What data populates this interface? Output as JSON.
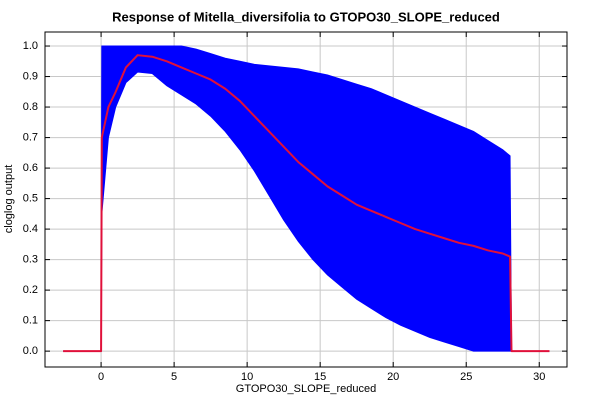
{
  "chart_data": {
    "type": "line",
    "title": "Response of Mitella_diversifolia to GTOPO30_SLOPE_reduced",
    "x_label": "GTOPO30_SLOPE_reduced",
    "y_label": "cloglog output",
    "x": [
      -2.6,
      0,
      0.05,
      0.5,
      1,
      1.7,
      2.5,
      3.5,
      4.5,
      5.5,
      6.5,
      7.5,
      8.5,
      9.5,
      10.5,
      11.5,
      12.5,
      13.5,
      14.5,
      15.5,
      16.5,
      17.5,
      18.5,
      19.5,
      20.5,
      21.5,
      22.5,
      23.5,
      24.5,
      25.5,
      26.5,
      27.5,
      28,
      28.1,
      30.7
    ],
    "line": {
      "color": "#e0103a",
      "values": [
        0,
        0,
        0.7,
        0.8,
        0.85,
        0.93,
        0.97,
        0.965,
        0.95,
        0.93,
        0.91,
        0.89,
        0.86,
        0.82,
        0.77,
        0.72,
        0.67,
        0.62,
        0.58,
        0.54,
        0.51,
        0.48,
        0.46,
        0.44,
        0.42,
        0.4,
        0.385,
        0.37,
        0.355,
        0.345,
        0.33,
        0.32,
        0.31,
        0,
        0
      ]
    },
    "band": {
      "color": "#0000ff",
      "upper": [
        0,
        0,
        1,
        1,
        1,
        1,
        1,
        1,
        1,
        1,
        0.99,
        0.975,
        0.96,
        0.95,
        0.94,
        0.935,
        0.93,
        0.925,
        0.915,
        0.905,
        0.89,
        0.875,
        0.86,
        0.84,
        0.82,
        0.8,
        0.78,
        0.76,
        0.74,
        0.72,
        0.69,
        0.66,
        0.64,
        0,
        0
      ],
      "lower": [
        0,
        0,
        0.45,
        0.7,
        0.8,
        0.88,
        0.915,
        0.91,
        0.87,
        0.84,
        0.81,
        0.77,
        0.72,
        0.66,
        0.59,
        0.51,
        0.43,
        0.36,
        0.3,
        0.25,
        0.21,
        0.17,
        0.14,
        0.11,
        0.085,
        0.065,
        0.045,
        0.03,
        0.015,
        0,
        0,
        0,
        0,
        0,
        0
      ]
    },
    "xlim": [
      -3.84,
      31.9
    ],
    "ylim": [
      -0.052,
      1.046
    ],
    "xticks": [
      0,
      5,
      10,
      15,
      20,
      25,
      30
    ],
    "yticks": [
      {
        "value": 0,
        "label": "0.0"
      },
      {
        "value": 0.1,
        "label": "0.1"
      },
      {
        "value": 0.2,
        "label": "0.2"
      },
      {
        "value": 0.3,
        "label": "0.3"
      },
      {
        "value": 0.4,
        "label": "0.4"
      },
      {
        "value": 0.5,
        "label": "0.5"
      },
      {
        "value": 0.6,
        "label": "0.6"
      },
      {
        "value": 0.7,
        "label": "0.7"
      },
      {
        "value": 0.8,
        "label": "0.8"
      },
      {
        "value": 0.9,
        "label": "0.9"
      },
      {
        "value": 1,
        "label": "1.0"
      }
    ],
    "grid": true
  }
}
